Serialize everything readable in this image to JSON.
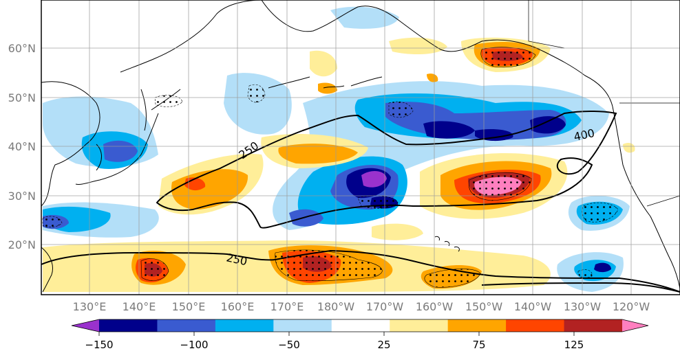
{
  "map": {
    "lat_labels": [
      "60°N",
      "50°N",
      "40°N",
      "30°N",
      "20°N"
    ],
    "lon_labels": [
      "130°E",
      "140°E",
      "150°E",
      "160°E",
      "170°E",
      "180°W",
      "170°W",
      "160°W",
      "150°W",
      "140°W",
      "130°W",
      "120°W"
    ],
    "contour_labels": [
      "250",
      "400",
      "250"
    ]
  },
  "colorbar": {
    "colors": [
      "#9a32cd",
      "#00008b",
      "#3a5bd0",
      "#00b0f0",
      "#b3dff8",
      "#ffffff",
      "#ffee99",
      "#ffa500",
      "#ff4500",
      "#b22222",
      "#ff7fbf"
    ],
    "tick_labels": [
      "−150",
      "−100",
      "−50",
      "25",
      "75",
      "125"
    ]
  }
}
